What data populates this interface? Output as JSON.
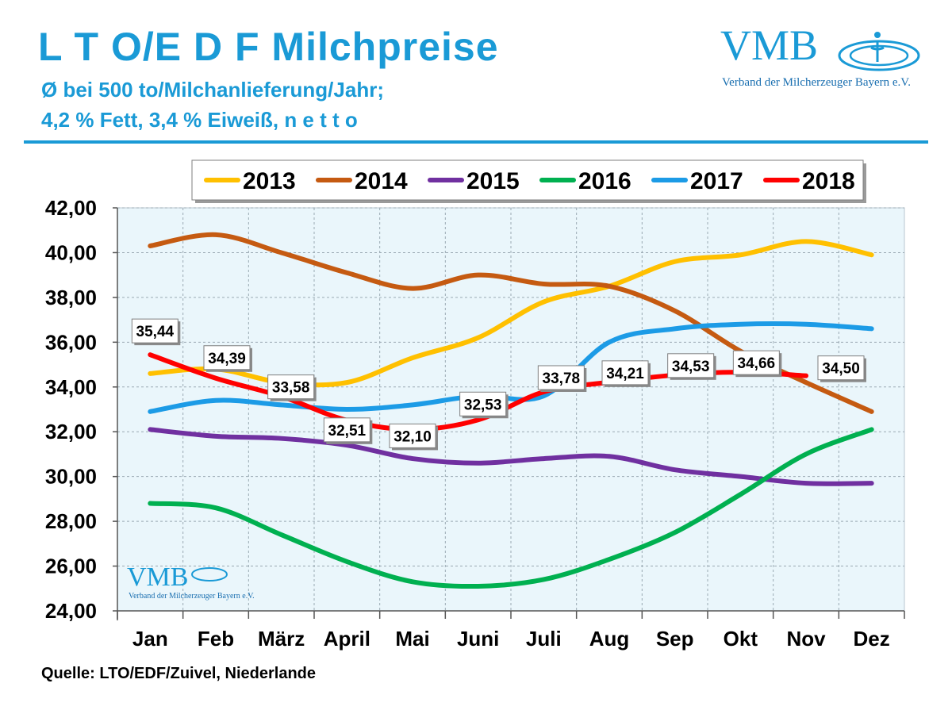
{
  "header": {
    "title": "L T O/E D F Milchpreise",
    "subtitle_line1": "Ø bei 500 to/Milchanlieferung/Jahr;",
    "subtitle_line2": "4,2 % Fett, 3,4 % Eiweiß, n e t t o"
  },
  "logo": {
    "text": "VMB",
    "tagline": "Verband der Milcherzeuger Bayern e.V."
  },
  "watermark": {
    "text": "VMB",
    "tagline": "Verband der Milcherzeuger Bayern e.V."
  },
  "source": "Quelle: LTO/EDF/Zuivel, Niederlande",
  "colors": {
    "accent": "#1a9ad6",
    "plot_bg": "#eaf6fb",
    "grid": "#9aa9b3"
  },
  "chart_data": {
    "type": "line",
    "categories": [
      "Jan",
      "Feb",
      "März",
      "April",
      "Mai",
      "Juni",
      "Juli",
      "Aug",
      "Sep",
      "Okt",
      "Nov",
      "Dez"
    ],
    "ylim": [
      24,
      42
    ],
    "yticks": [
      24,
      26,
      28,
      30,
      32,
      34,
      36,
      38,
      40,
      42
    ],
    "ytick_labels": [
      "24,00",
      "26,00",
      "28,00",
      "30,00",
      "32,00",
      "34,00",
      "36,00",
      "38,00",
      "40,00",
      "42,00"
    ],
    "grid": true,
    "legend": "top",
    "series": [
      {
        "name": "2013",
        "color": "#ffc000",
        "values": [
          34.6,
          34.8,
          34.2,
          34.2,
          35.3,
          36.2,
          37.8,
          38.5,
          39.6,
          39.9,
          40.5,
          39.9
        ]
      },
      {
        "name": "2014",
        "color": "#c55a11",
        "values": [
          40.3,
          40.8,
          40.0,
          39.1,
          38.4,
          39.0,
          38.6,
          38.5,
          37.4,
          35.6,
          34.2,
          32.9
        ]
      },
      {
        "name": "2015",
        "color": "#7030a0",
        "values": [
          32.1,
          31.8,
          31.7,
          31.4,
          30.8,
          30.6,
          30.8,
          30.9,
          30.3,
          30.0,
          29.7,
          29.7
        ]
      },
      {
        "name": "2016",
        "color": "#00b050",
        "values": [
          28.8,
          28.6,
          27.4,
          26.2,
          25.3,
          25.1,
          25.4,
          26.3,
          27.5,
          29.2,
          31.0,
          32.1
        ]
      },
      {
        "name": "2017",
        "color": "#1c9be6",
        "values": [
          32.9,
          33.4,
          33.2,
          33.0,
          33.2,
          33.6,
          33.6,
          36.0,
          36.6,
          36.8,
          36.8,
          36.6
        ]
      },
      {
        "name": "2018",
        "color": "#ff0000",
        "values": [
          35.44,
          34.39,
          33.58,
          32.51,
          32.1,
          32.53,
          33.78,
          34.21,
          34.53,
          34.66,
          34.5,
          null
        ],
        "labels": [
          "35,44",
          "34,39",
          "33,58",
          "32,51",
          "32,10",
          "32,53",
          "33,78",
          "34,21",
          "34,53",
          "34,66",
          "34,50",
          null
        ]
      }
    ]
  }
}
